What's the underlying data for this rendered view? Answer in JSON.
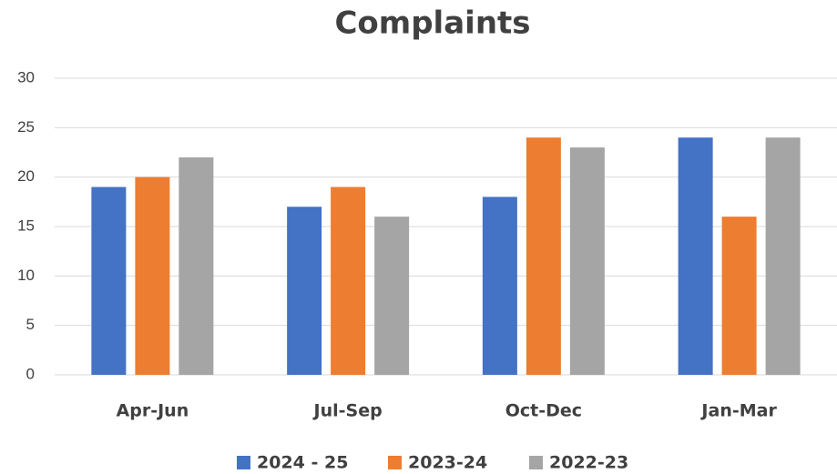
{
  "chart_data": {
    "type": "bar",
    "title": "Complaints",
    "categories": [
      "Apr-Jun",
      "Jul-Sep",
      "Oct-Dec",
      "Jan-Mar"
    ],
    "series": [
      {
        "name": "2024 - 25",
        "color": "#4472c4",
        "values": [
          19,
          17,
          18,
          24
        ]
      },
      {
        "name": "2023-24",
        "color": "#ed7d31",
        "values": [
          20,
          19,
          24,
          16
        ]
      },
      {
        "name": "2022-23",
        "color": "#a5a5a5",
        "values": [
          22,
          16,
          23,
          24
        ]
      }
    ],
    "ylim": [
      0,
      30
    ],
    "yticks": [
      0,
      5,
      10,
      15,
      20,
      25,
      30
    ],
    "grid": true,
    "legend": "bottom"
  }
}
